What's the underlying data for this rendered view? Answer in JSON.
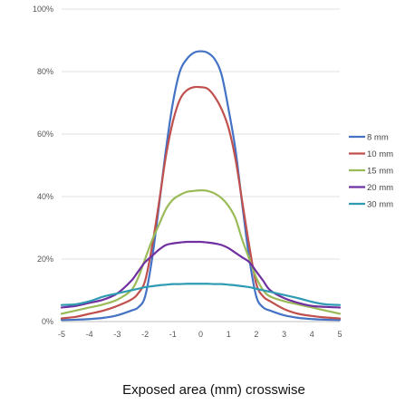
{
  "chart_data": {
    "type": "line",
    "title": "",
    "xlabel": "Exposed area (mm) crosswise",
    "ylabel": "",
    "xlim": [
      -5,
      5
    ],
    "ylim": [
      0,
      100
    ],
    "x_ticks": [
      -5,
      -4,
      -3,
      -2,
      -1,
      0,
      1,
      2,
      3,
      4,
      5
    ],
    "y_ticks": [
      0,
      20,
      40,
      60,
      80,
      100
    ],
    "y_tick_labels": [
      "0%",
      "20%",
      "40%",
      "60%",
      "80%",
      "100%"
    ],
    "grid": "horizontal",
    "legend_position": "right",
    "x": [
      -5,
      -4.5,
      -4,
      -3.5,
      -3,
      -2.5,
      -2.25,
      -2,
      -1.75,
      -1.5,
      -1.25,
      -1,
      -0.75,
      -0.5,
      -0.25,
      0,
      0.25,
      0.5,
      0.75,
      1,
      1.25,
      1.5,
      1.75,
      2,
      2.25,
      2.5,
      3,
      3.5,
      4,
      4.5,
      5
    ],
    "series": [
      {
        "name": "8 mm",
        "color": "#4472c4",
        "values": [
          0.5,
          0.6,
          0.8,
          1.2,
          2,
          3.5,
          4.5,
          8,
          20,
          37,
          55,
          70,
          80,
          84,
          86,
          86.5,
          86,
          84,
          79,
          68,
          55,
          37,
          20,
          8,
          4.5,
          3.5,
          2,
          1.2,
          0.8,
          0.6,
          0.5
        ]
      },
      {
        "name": "10 mm",
        "color": "#c0504d",
        "values": [
          1,
          1.5,
          2.5,
          3.5,
          5,
          7,
          9,
          13,
          24,
          38,
          53,
          64,
          71,
          74,
          75,
          75,
          74.5,
          72,
          68,
          62,
          52,
          38,
          24,
          12,
          8,
          6.5,
          4,
          2.5,
          1.8,
          1.3,
          1
        ]
      },
      {
        "name": "15 mm",
        "color": "#9bbb59",
        "values": [
          2.5,
          3.5,
          4.5,
          5.5,
          7,
          10,
          14,
          20,
          26,
          31,
          36,
          39,
          40.5,
          41.5,
          41.8,
          42,
          41.8,
          41,
          39.5,
          37,
          33,
          26,
          20,
          14,
          10,
          8,
          6.5,
          5.5,
          4.5,
          3.5,
          2.5
        ]
      },
      {
        "name": "20 mm",
        "color": "#7030a0",
        "values": [
          4.5,
          5,
          6,
          7,
          9,
          13,
          16,
          19,
          21,
          23,
          24.5,
          25,
          25.3,
          25.5,
          25.5,
          25.5,
          25.3,
          25,
          24.5,
          23.5,
          22,
          20.5,
          19,
          16,
          13,
          10,
          7.5,
          6,
          5,
          4.7,
          4.5
        ]
      },
      {
        "name": "30 mm",
        "color": "#2e9bb3",
        "values": [
          5.3,
          5.5,
          6.5,
          8,
          9,
          10,
          10.5,
          11,
          11.3,
          11.6,
          11.8,
          12,
          12,
          12.1,
          12.1,
          12.1,
          12.1,
          12,
          12,
          11.8,
          11.6,
          11.3,
          11,
          10.5,
          10,
          9.5,
          8.5,
          7.5,
          6.3,
          5.5,
          5.3
        ]
      }
    ]
  }
}
